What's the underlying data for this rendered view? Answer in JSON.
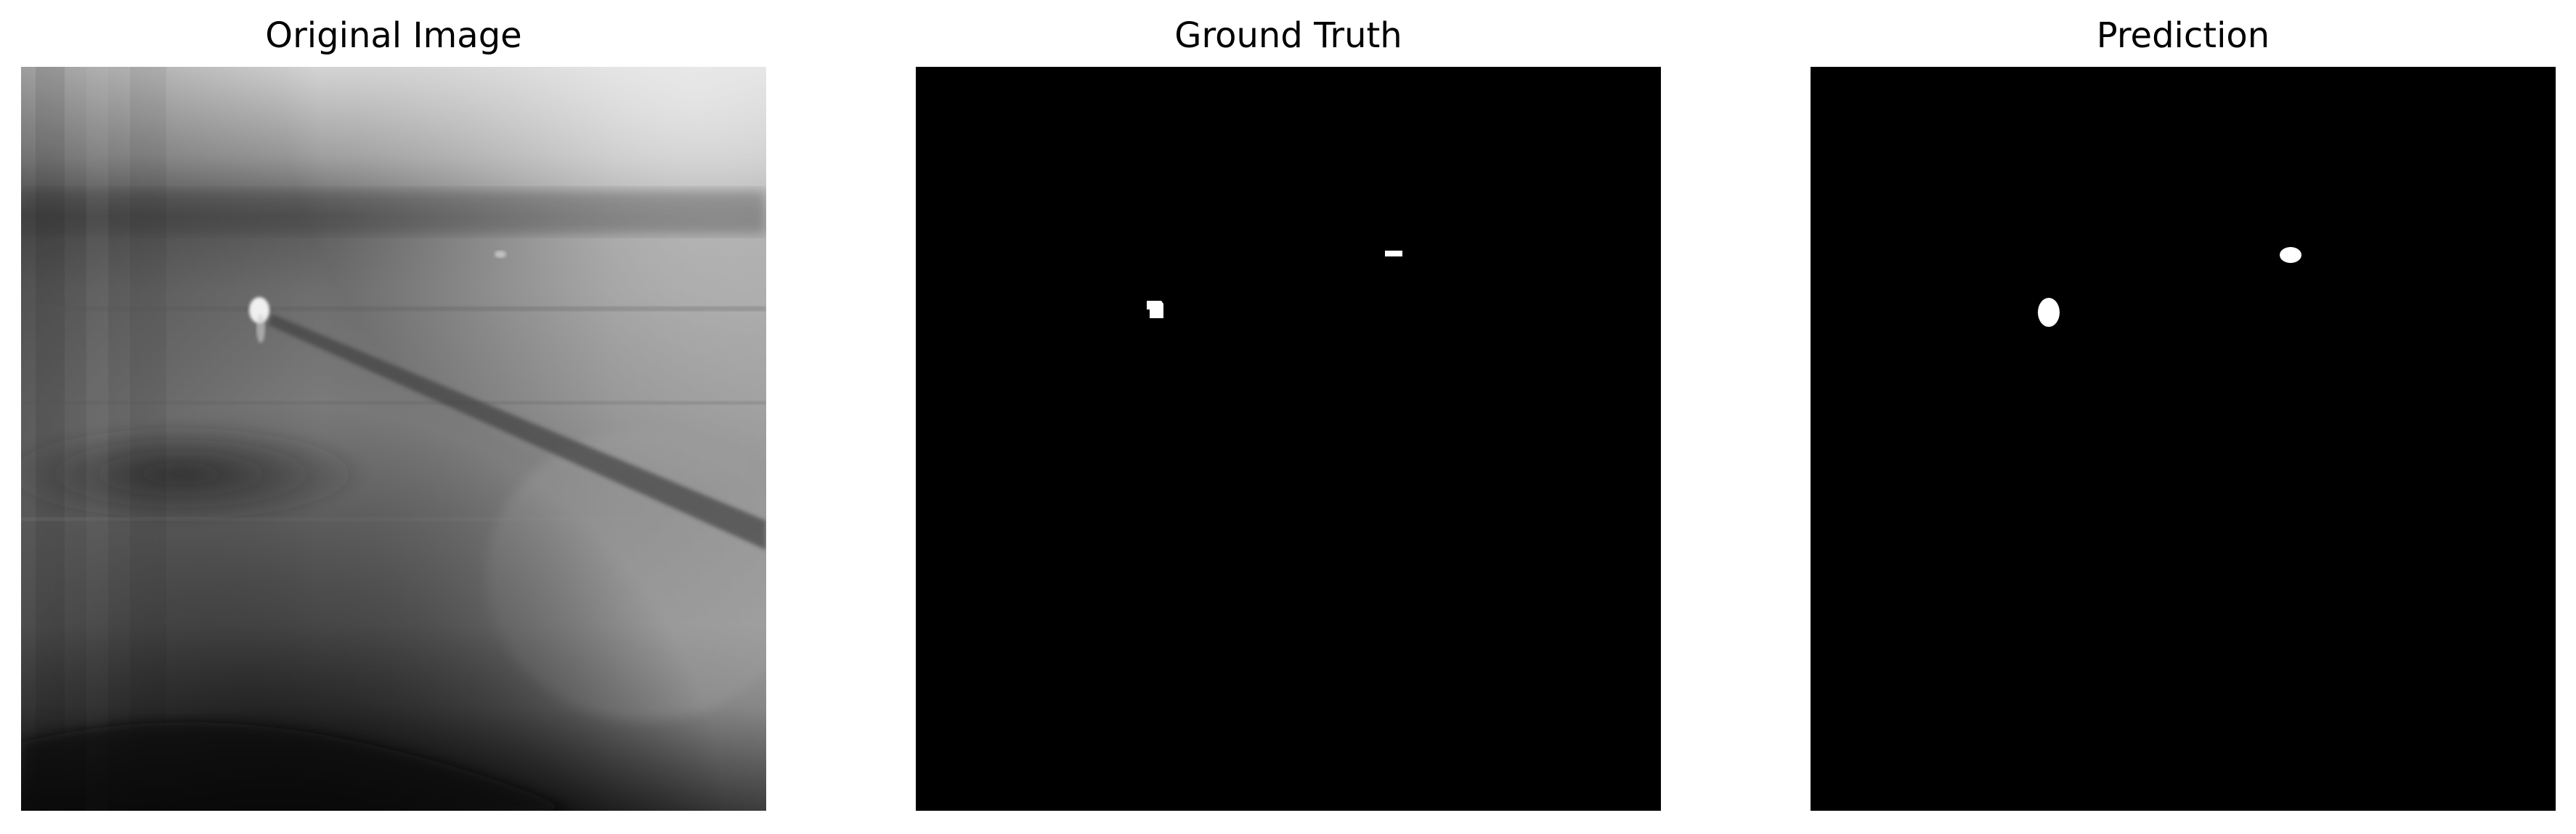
{
  "figure": {
    "panels": [
      {
        "title": "Original Image"
      },
      {
        "title": "Ground Truth"
      },
      {
        "title": "Prediction"
      }
    ]
  },
  "colors": {
    "background": "#ffffff",
    "mask_background": "#000000",
    "mask_foreground": "#ffffff"
  }
}
